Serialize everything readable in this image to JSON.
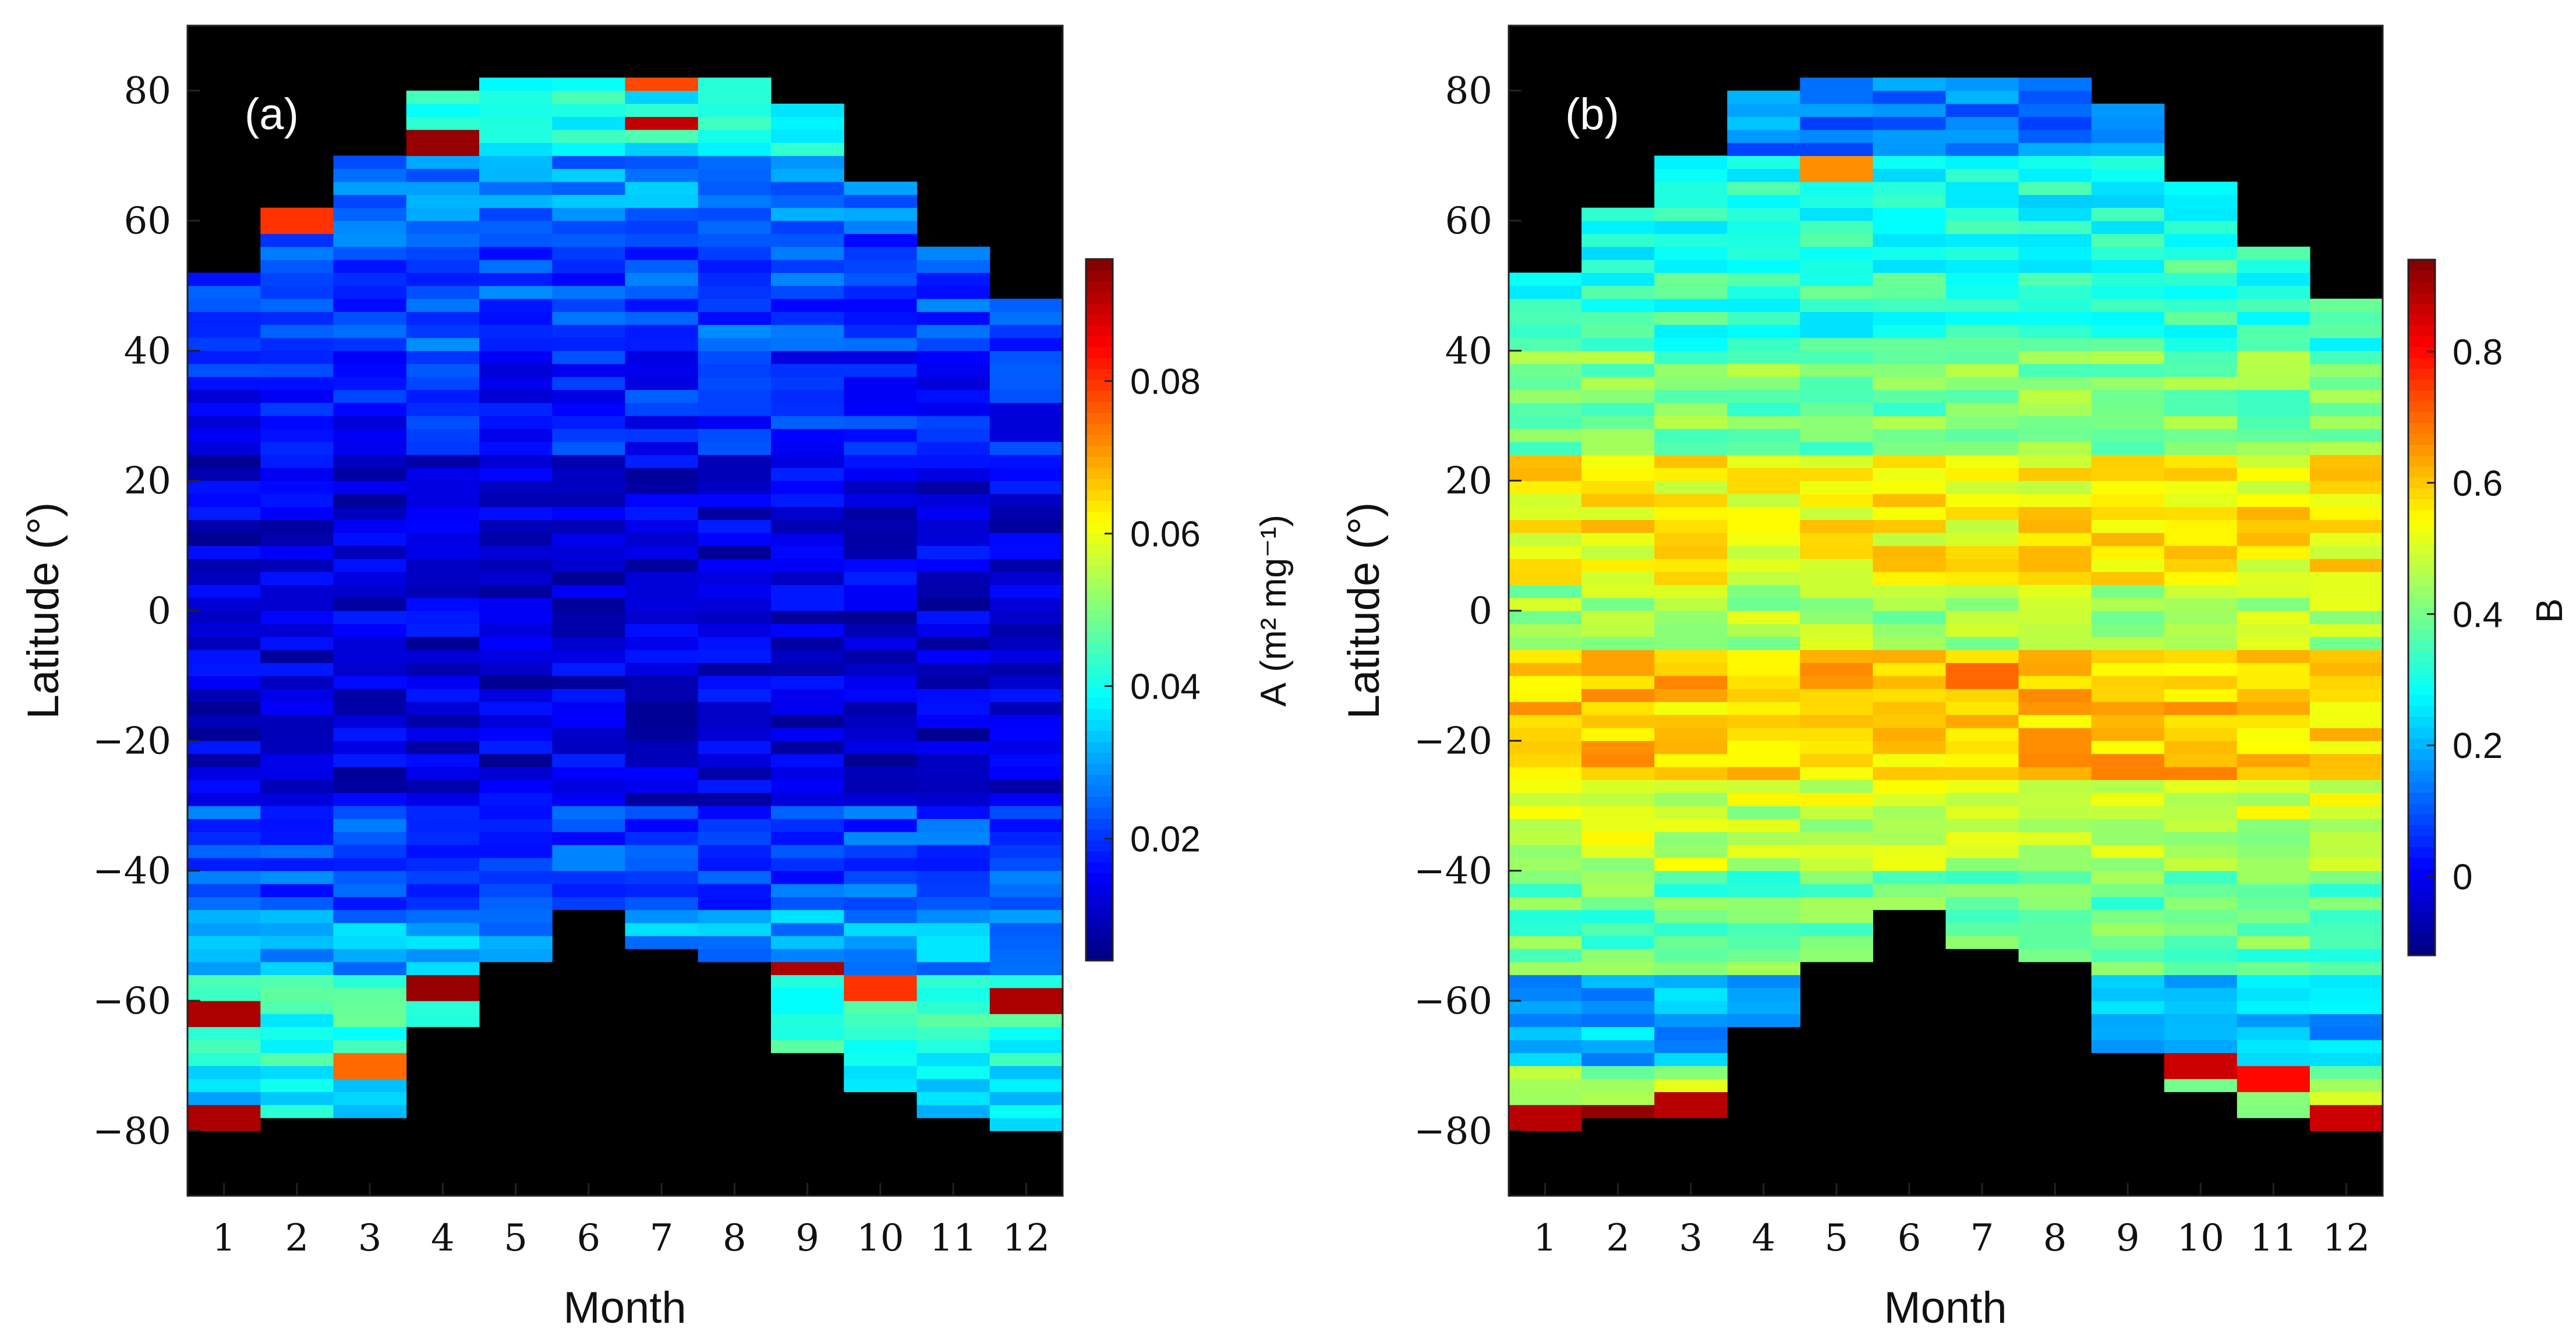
{
  "chart_data": [
    {
      "type": "heatmap",
      "panel_label": "(a)",
      "xlabel": "Month",
      "ylabel": "Latitude (°)",
      "x_ticks": [
        "1",
        "2",
        "3",
        "4",
        "5",
        "6",
        "7",
        "8",
        "9",
        "10",
        "11",
        "12"
      ],
      "y_ticks": [
        "80",
        "60",
        "40",
        "20",
        "0",
        "−20",
        "−40",
        "−60",
        "−80"
      ],
      "y_tick_values": [
        80,
        60,
        40,
        20,
        0,
        -20,
        -40,
        -60,
        -80
      ],
      "xlim": [
        0.5,
        12.5
      ],
      "ylim": [
        -90,
        90
      ],
      "lat_bin_deg": 2,
      "colormap": "jet",
      "no_data_color": "#000000",
      "colorbar": {
        "label_main": "A",
        "label_units": "(m² mg⁻¹)",
        "range": [
          0.004,
          0.096
        ],
        "ticks": [
          "0.02",
          "0.04",
          "0.06",
          "0.08"
        ],
        "tick_values": [
          0.02,
          0.04,
          0.06,
          0.08
        ]
      },
      "lat_coverage_by_month": [
        {
          "month": 1,
          "lat_min": -80,
          "lat_max": 52
        },
        {
          "month": 2,
          "lat_min": -78,
          "lat_max": 62
        },
        {
          "month": 3,
          "lat_min": -78,
          "lat_max": 70
        },
        {
          "month": 4,
          "lat_min": -64,
          "lat_max": 80
        },
        {
          "month": 5,
          "lat_min": -54,
          "lat_max": 82
        },
        {
          "month": 6,
          "lat_min": -46,
          "lat_max": 82
        },
        {
          "month": 7,
          "lat_min": -52,
          "lat_max": 82
        },
        {
          "month": 8,
          "lat_min": -54,
          "lat_max": 82
        },
        {
          "month": 9,
          "lat_min": -68,
          "lat_max": 78
        },
        {
          "month": 10,
          "lat_min": -74,
          "lat_max": 66
        },
        {
          "month": 11,
          "lat_min": -78,
          "lat_max": 56
        },
        {
          "month": 12,
          "lat_min": -80,
          "lat_max": 48
        }
      ],
      "values_by_latitude_band": [
        {
          "lat_from": 70,
          "lat_to": 82,
          "value": 0.04
        },
        {
          "lat_from": 60,
          "lat_to": 70,
          "value": 0.028
        },
        {
          "lat_from": 40,
          "lat_to": 60,
          "value": 0.022
        },
        {
          "lat_from": 25,
          "lat_to": 40,
          "value": 0.018
        },
        {
          "lat_from": -30,
          "lat_to": 25,
          "value": 0.012
        },
        {
          "lat_from": -45,
          "lat_to": -30,
          "value": 0.022
        },
        {
          "lat_from": -55,
          "lat_to": -45,
          "value": 0.03
        },
        {
          "lat_from": -70,
          "lat_to": -55,
          "value": 0.042
        },
        {
          "lat_from": -80,
          "lat_to": -70,
          "value": 0.036
        }
      ],
      "highlights": [
        {
          "month": 7,
          "lat": 75,
          "value": 0.09
        },
        {
          "month": 7,
          "lat": 81,
          "value": 0.078
        },
        {
          "month": 4,
          "lat": 72,
          "value": 0.094
        },
        {
          "month": 2,
          "lat": 60,
          "value": 0.08
        },
        {
          "month": 1,
          "lat": -62,
          "value": 0.092
        },
        {
          "month": 1,
          "lat": -78,
          "value": 0.092
        },
        {
          "month": 4,
          "lat": -58,
          "value": 0.094
        },
        {
          "month": 9,
          "lat": -55,
          "value": 0.092
        },
        {
          "month": 10,
          "lat": -58,
          "value": 0.08
        },
        {
          "month": 12,
          "lat": -60,
          "value": 0.092
        },
        {
          "month": 3,
          "lat": -70,
          "value": 0.075
        }
      ]
    },
    {
      "type": "heatmap",
      "panel_label": "(b)",
      "xlabel": "Month",
      "ylabel": "Latitude (°)",
      "x_ticks": [
        "1",
        "2",
        "3",
        "4",
        "5",
        "6",
        "7",
        "8",
        "9",
        "10",
        "11",
        "12"
      ],
      "y_ticks": [
        "80",
        "60",
        "40",
        "20",
        "0",
        "−20",
        "−40",
        "−60",
        "−80"
      ],
      "y_tick_values": [
        80,
        60,
        40,
        20,
        0,
        -20,
        -40,
        -60,
        -80
      ],
      "xlim": [
        0.5,
        12.5
      ],
      "ylim": [
        -90,
        90
      ],
      "lat_bin_deg": 2,
      "colormap": "jet",
      "no_data_color": "#000000",
      "colorbar": {
        "label_main": "B",
        "range": [
          -0.12,
          0.94
        ],
        "ticks": [
          "0",
          "0.2",
          "0.4",
          "0.6",
          "0.8"
        ],
        "tick_values": [
          0,
          0.2,
          0.4,
          0.6,
          0.8
        ]
      },
      "lat_coverage_by_month": [
        {
          "month": 1,
          "lat_min": -80,
          "lat_max": 52
        },
        {
          "month": 2,
          "lat_min": -78,
          "lat_max": 62
        },
        {
          "month": 3,
          "lat_min": -78,
          "lat_max": 70
        },
        {
          "month": 4,
          "lat_min": -64,
          "lat_max": 80
        },
        {
          "month": 5,
          "lat_min": -54,
          "lat_max": 82
        },
        {
          "month": 6,
          "lat_min": -46,
          "lat_max": 82
        },
        {
          "month": 7,
          "lat_min": -52,
          "lat_max": 82
        },
        {
          "month": 8,
          "lat_min": -54,
          "lat_max": 82
        },
        {
          "month": 9,
          "lat_min": -68,
          "lat_max": 78
        },
        {
          "month": 10,
          "lat_min": -74,
          "lat_max": 66
        },
        {
          "month": 11,
          "lat_min": -78,
          "lat_max": 56
        },
        {
          "month": 12,
          "lat_min": -80,
          "lat_max": 48
        }
      ],
      "values_by_latitude_band": [
        {
          "lat_from": 70,
          "lat_to": 82,
          "value": 0.15
        },
        {
          "lat_from": 55,
          "lat_to": 70,
          "value": 0.3
        },
        {
          "lat_from": 40,
          "lat_to": 55,
          "value": 0.32
        },
        {
          "lat_from": 25,
          "lat_to": 40,
          "value": 0.4
        },
        {
          "lat_from": 5,
          "lat_to": 25,
          "value": 0.55
        },
        {
          "lat_from": -5,
          "lat_to": 5,
          "value": 0.45
        },
        {
          "lat_from": -25,
          "lat_to": -5,
          "value": 0.6
        },
        {
          "lat_from": -40,
          "lat_to": -25,
          "value": 0.48
        },
        {
          "lat_from": -55,
          "lat_to": -40,
          "value": 0.38
        },
        {
          "lat_from": -70,
          "lat_to": -55,
          "value": 0.2
        },
        {
          "lat_from": -80,
          "lat_to": -70,
          "value": 0.45
        }
      ],
      "highlights": [
        {
          "month": 5,
          "lat": 68,
          "value": 0.66
        },
        {
          "month": 7,
          "lat": -10,
          "value": 0.7
        },
        {
          "month": 8,
          "lat": -20,
          "value": 0.66
        },
        {
          "month": 1,
          "lat": -78,
          "value": 0.88
        },
        {
          "month": 2,
          "lat": -78,
          "value": 0.92
        },
        {
          "month": 3,
          "lat": -76,
          "value": 0.88
        },
        {
          "month": 10,
          "lat": -70,
          "value": 0.86
        },
        {
          "month": 11,
          "lat": -72,
          "value": 0.8
        },
        {
          "month": 12,
          "lat": -78,
          "value": 0.86
        }
      ]
    }
  ]
}
